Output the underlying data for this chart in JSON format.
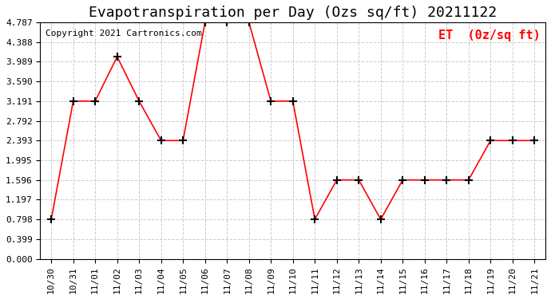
{
  "title": "Evapotranspiration per Day (Ozs sq/ft) 20211122",
  "copyright_text": "Copyright 2021 Cartronics.com",
  "legend_label": "ET  (0z/sq ft)",
  "x_ticks": [
    "10/30",
    "10/31",
    "11/01",
    "11/02",
    "11/03",
    "11/04",
    "11/05",
    "11/06",
    "11/07",
    "11/08",
    "11/09",
    "11/10",
    "11/11",
    "11/12",
    "11/13",
    "11/14",
    "11/15",
    "11/16",
    "11/17",
    "11/18",
    "11/19",
    "11/20",
    "11/21"
  ],
  "values": [
    0.798,
    3.191,
    3.191,
    4.089,
    3.191,
    2.393,
    2.393,
    4.787,
    4.787,
    4.787,
    3.191,
    3.191,
    0.798,
    1.596,
    1.596,
    0.798,
    1.596,
    1.596,
    1.596,
    1.596,
    2.393,
    2.393,
    2.393
  ],
  "y_ticks": [
    0.0,
    0.399,
    0.798,
    1.197,
    1.596,
    1.995,
    2.393,
    2.792,
    3.191,
    3.59,
    3.989,
    4.388,
    4.787
  ],
  "ylim": [
    0.0,
    4.787
  ],
  "line_color": "red",
  "marker_color": "black",
  "bg_color": "#ffffff",
  "grid_color": "#cccccc",
  "title_fontsize": 13,
  "copyright_fontsize": 8,
  "legend_fontsize": 11,
  "tick_fontsize": 8
}
